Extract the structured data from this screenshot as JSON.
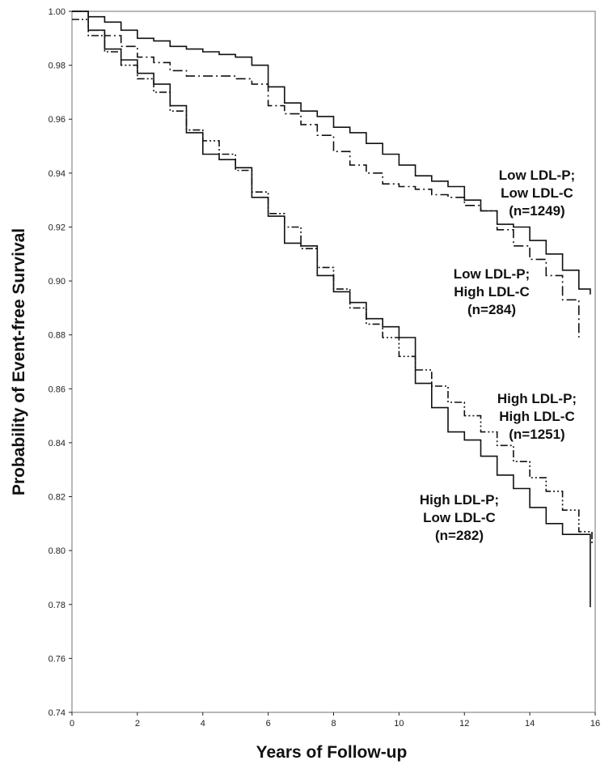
{
  "chart_data": {
    "type": "line",
    "step": true,
    "title": "",
    "xlabel": "Years of Follow-up",
    "ylabel": "Probability of Event-free Survival",
    "xlim": [
      0,
      16
    ],
    "ylim": [
      0.74,
      1.0
    ],
    "xticks": [
      "0",
      "2",
      "4",
      "6",
      "8",
      "10",
      "12",
      "14",
      "16"
    ],
    "yticks": [
      "0.74",
      "0.76",
      "0.78",
      "0.80",
      "0.82",
      "0.84",
      "0.86",
      "0.88",
      "0.90",
      "0.92",
      "0.94",
      "0.96",
      "0.98",
      "1.00"
    ],
    "grid": false,
    "series": [
      {
        "name": "Low LDL-P; Low LDL-C (n=1249)",
        "style": "solid",
        "x": [
          0,
          0.5,
          1,
          1.5,
          2,
          2.5,
          3,
          3.5,
          4,
          4.5,
          5,
          5.5,
          6,
          6.5,
          7,
          7.5,
          8,
          8.5,
          9,
          9.5,
          10,
          10.5,
          11,
          11.5,
          12,
          12.5,
          13,
          13.5,
          14,
          14.5,
          15,
          15.5,
          15.85
        ],
        "y": [
          1.0,
          0.998,
          0.996,
          0.993,
          0.99,
          0.989,
          0.987,
          0.986,
          0.985,
          0.984,
          0.983,
          0.98,
          0.972,
          0.966,
          0.963,
          0.961,
          0.957,
          0.955,
          0.951,
          0.947,
          0.943,
          0.939,
          0.937,
          0.935,
          0.93,
          0.926,
          0.921,
          0.92,
          0.915,
          0.91,
          0.904,
          0.897,
          0.895
        ]
      },
      {
        "name": "Low LDL-P; High LDL-C (n=284)",
        "style": "dashdot",
        "x": [
          0,
          0.5,
          1,
          1.5,
          2,
          2.5,
          3,
          3.5,
          4,
          4.5,
          5,
          5.5,
          6,
          6.5,
          7,
          7.5,
          8,
          8.5,
          9,
          9.5,
          10,
          10.5,
          11,
          11.5,
          12,
          12.5,
          13,
          13.5,
          14,
          14.5,
          15,
          15.5
        ],
        "y": [
          1.0,
          0.993,
          0.991,
          0.987,
          0.983,
          0.981,
          0.978,
          0.976,
          0.976,
          0.976,
          0.975,
          0.973,
          0.965,
          0.962,
          0.958,
          0.954,
          0.948,
          0.943,
          0.94,
          0.936,
          0.935,
          0.934,
          0.932,
          0.931,
          0.928,
          0.926,
          0.919,
          0.913,
          0.908,
          0.902,
          0.893,
          0.879
        ]
      },
      {
        "name": "High LDL-P; High LDL-C (n=1251)",
        "style": "dashdotdot",
        "x": [
          0,
          0.5,
          1,
          1.5,
          2,
          2.5,
          3,
          3.5,
          4,
          4.5,
          5,
          5.5,
          6,
          6.5,
          7,
          7.5,
          8,
          8.5,
          9,
          9.5,
          10,
          10.5,
          11,
          11.5,
          12,
          12.5,
          13,
          13.5,
          14,
          14.5,
          15,
          15.5,
          15.9
        ],
        "y": [
          0.997,
          0.991,
          0.985,
          0.98,
          0.975,
          0.97,
          0.963,
          0.956,
          0.952,
          0.947,
          0.941,
          0.933,
          0.925,
          0.92,
          0.912,
          0.905,
          0.897,
          0.89,
          0.884,
          0.879,
          0.872,
          0.867,
          0.861,
          0.855,
          0.85,
          0.844,
          0.839,
          0.833,
          0.827,
          0.822,
          0.815,
          0.807,
          0.802
        ]
      },
      {
        "name": "High LDL-P; Low LDL-C (n=282)",
        "style": "solid",
        "x": [
          0,
          0.5,
          1,
          1.5,
          2,
          2.5,
          3,
          3.5,
          4,
          4.5,
          5,
          5.5,
          6,
          6.5,
          7,
          7.5,
          8,
          8.5,
          9,
          9.5,
          10,
          10.5,
          11,
          11.5,
          12,
          12.5,
          13,
          13.5,
          14,
          14.5,
          15,
          15.5,
          15.85
        ],
        "y": [
          1.0,
          0.993,
          0.986,
          0.982,
          0.977,
          0.973,
          0.965,
          0.955,
          0.947,
          0.945,
          0.942,
          0.931,
          0.924,
          0.914,
          0.913,
          0.902,
          0.896,
          0.892,
          0.886,
          0.883,
          0.879,
          0.862,
          0.853,
          0.844,
          0.841,
          0.835,
          0.828,
          0.823,
          0.816,
          0.81,
          0.806,
          0.806,
          0.779
        ]
      }
    ],
    "annotations": [
      {
        "series": 0,
        "lines": [
          "Low LDL-P;",
          "Low LDL-C",
          "(n=1249)"
        ]
      },
      {
        "series": 1,
        "lines": [
          "Low LDL-P;",
          "High LDL-C",
          "(n=284)"
        ]
      },
      {
        "series": 2,
        "lines": [
          "High LDL-P;",
          "High LDL-C",
          "(n=1251)"
        ]
      },
      {
        "series": 3,
        "lines": [
          "High LDL-P;",
          "Low LDL-C",
          "(n=282)"
        ]
      }
    ]
  }
}
